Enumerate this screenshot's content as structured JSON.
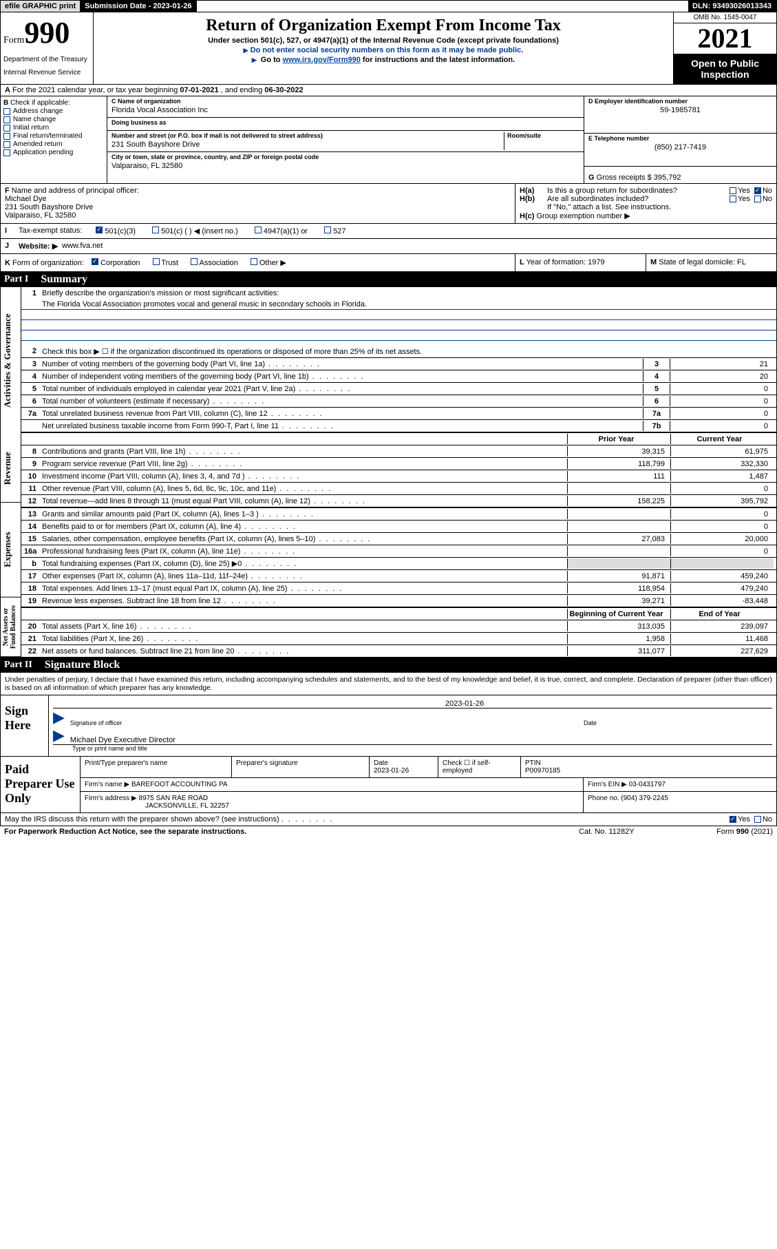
{
  "topbar": {
    "efile": "efile GRAPHIC print",
    "submission_label": "Submission Date - ",
    "submission_date": "2023-01-26",
    "dln_label": "DLN: ",
    "dln": "93493026013343"
  },
  "header": {
    "form_word": "Form",
    "form_number": "990",
    "dept": "Department of the Treasury",
    "irs": "Internal Revenue Service",
    "title": "Return of Organization Exempt From Income Tax",
    "subtitle": "Under section 501(c), 527, or 4947(a)(1) of the Internal Revenue Code (except private foundations)",
    "note1": "Do not enter social security numbers on this form as it may be made public.",
    "note2_pre": "Go to ",
    "note2_link": "www.irs.gov/Form990",
    "note2_post": " for instructions and the latest information.",
    "omb": "OMB No. 1545-0047",
    "year": "2021",
    "inspection": "Open to Public Inspection"
  },
  "row_a": {
    "label": "A",
    "text_pre": "For the 2021 calendar year, or tax year beginning ",
    "date1": "07-01-2021",
    "text_mid": " , and ending ",
    "date2": "06-30-2022"
  },
  "section_b": {
    "label": "B",
    "intro": "Check if applicable:",
    "items": [
      "Address change",
      "Name change",
      "Initial return",
      "Final return/terminated",
      "Amended return",
      "Application pending"
    ]
  },
  "section_c": {
    "name_label": "C Name of organization",
    "name": "Florida Vocal Association Inc",
    "dba_label": "Doing business as",
    "dba": "",
    "street_label": "Number and street (or P.O. box if mail is not delivered to street address)",
    "room_label": "Room/suite",
    "street": "231 South Bayshore Drive",
    "city_label": "City or town, state or province, country, and ZIP or foreign postal code",
    "city": "Valparaiso, FL  32580"
  },
  "section_d": {
    "label": "D Employer identification number",
    "ein": "59-1985781"
  },
  "section_e": {
    "label": "E Telephone number",
    "phone": "(850) 217-7419"
  },
  "section_g": {
    "label": "G",
    "text": "Gross receipts $",
    "val": "395,792"
  },
  "section_f": {
    "label": "F",
    "text": "Name and address of principal officer:",
    "name": "Michael Dye",
    "street": "231 South Bayshore Drive",
    "city": "Valparaiso, FL  32580"
  },
  "section_h": {
    "a_label": "H(a)",
    "a_text": "Is this a group return for subordinates?",
    "b_label": "H(b)",
    "b_text": "Are all subordinates included?",
    "b_note": "If \"No,\" attach a list. See instructions.",
    "c_label": "H(c)",
    "c_text": "Group exemption number ▶",
    "yes": "Yes",
    "no": "No"
  },
  "section_i": {
    "label": "I",
    "text": "Tax-exempt status:",
    "opts": [
      "501(c)(3)",
      "501(c) (  ) ◀ (insert no.)",
      "4947(a)(1) or",
      "527"
    ]
  },
  "section_j": {
    "label": "J",
    "text": "Website: ▶",
    "val": "www.fva.net"
  },
  "section_k": {
    "label": "K",
    "text": "Form of organization:",
    "opts": [
      "Corporation",
      "Trust",
      "Association",
      "Other ▶"
    ]
  },
  "section_l": {
    "label": "L",
    "text": "Year of formation:",
    "val": "1979"
  },
  "section_m": {
    "label": "M",
    "text": "State of legal domicile:",
    "val": "FL"
  },
  "part1": {
    "part": "Part I",
    "title": "Summary",
    "vtabs": [
      "Activities & Governance",
      "Revenue",
      "Expenses",
      "Net Assets or Fund Balances"
    ],
    "line1_num": "1",
    "line1": "Briefly describe the organization's mission or most significant activities:",
    "mission": "The Florida Vocal Association promotes vocal and general music in secondary schools in Florida.",
    "line2_num": "2",
    "line2": "Check this box ▶ ☐ if the organization discontinued its operations or disposed of more than 25% of its net assets.",
    "gov_rows": [
      {
        "n": "3",
        "d": "Number of voting members of the governing body (Part VI, line 1a)",
        "c": "3",
        "v": "21"
      },
      {
        "n": "4",
        "d": "Number of independent voting members of the governing body (Part VI, line 1b)",
        "c": "4",
        "v": "20"
      },
      {
        "n": "5",
        "d": "Total number of individuals employed in calendar year 2021 (Part V, line 2a)",
        "c": "5",
        "v": "0"
      },
      {
        "n": "6",
        "d": "Total number of volunteers (estimate if necessary)",
        "c": "6",
        "v": "0"
      },
      {
        "n": "7a",
        "d": "Total unrelated business revenue from Part VIII, column (C), line 12",
        "c": "7a",
        "v": "0"
      },
      {
        "n": "",
        "d": "Net unrelated business taxable income from Form 990-T, Part I, line 11",
        "c": "7b",
        "v": "0"
      }
    ],
    "col_prior": "Prior Year",
    "col_current": "Current Year",
    "col_boy": "Beginning of Current Year",
    "col_eoy": "End of Year",
    "rev_rows": [
      {
        "n": "8",
        "d": "Contributions and grants (Part VIII, line 1h)",
        "p": "39,315",
        "c": "61,975"
      },
      {
        "n": "9",
        "d": "Program service revenue (Part VIII, line 2g)",
        "p": "118,799",
        "c": "332,330"
      },
      {
        "n": "10",
        "d": "Investment income (Part VIII, column (A), lines 3, 4, and 7d )",
        "p": "111",
        "c": "1,487"
      },
      {
        "n": "11",
        "d": "Other revenue (Part VIII, column (A), lines 5, 6d, 8c, 9c, 10c, and 11e)",
        "p": "",
        "c": "0"
      },
      {
        "n": "12",
        "d": "Total revenue—add lines 8 through 11 (must equal Part VIII, column (A), line 12)",
        "p": "158,225",
        "c": "395,792"
      }
    ],
    "exp_rows": [
      {
        "n": "13",
        "d": "Grants and similar amounts paid (Part IX, column (A), lines 1–3 )",
        "p": "",
        "c": "0"
      },
      {
        "n": "14",
        "d": "Benefits paid to or for members (Part IX, column (A), line 4)",
        "p": "",
        "c": "0"
      },
      {
        "n": "15",
        "d": "Salaries, other compensation, employee benefits (Part IX, column (A), lines 5–10)",
        "p": "27,083",
        "c": "20,000"
      },
      {
        "n": "16a",
        "d": "Professional fundraising fees (Part IX, column (A), line 11e)",
        "p": "",
        "c": "0"
      },
      {
        "n": "b",
        "d": "Total fundraising expenses (Part IX, column (D), line 25) ▶0",
        "p": "gray",
        "c": "gray"
      },
      {
        "n": "17",
        "d": "Other expenses (Part IX, column (A), lines 11a–11d, 11f–24e)",
        "p": "91,871",
        "c": "459,240"
      },
      {
        "n": "18",
        "d": "Total expenses. Add lines 13–17 (must equal Part IX, column (A), line 25)",
        "p": "118,954",
        "c": "479,240"
      },
      {
        "n": "19",
        "d": "Revenue less expenses. Subtract line 18 from line 12",
        "p": "39,271",
        "c": "-83,448"
      }
    ],
    "net_rows": [
      {
        "n": "20",
        "d": "Total assets (Part X, line 16)",
        "p": "313,035",
        "c": "239,097"
      },
      {
        "n": "21",
        "d": "Total liabilities (Part X, line 26)",
        "p": "1,958",
        "c": "11,468"
      },
      {
        "n": "22",
        "d": "Net assets or fund balances. Subtract line 21 from line 20",
        "p": "311,077",
        "c": "227,629"
      }
    ]
  },
  "part2": {
    "part": "Part II",
    "title": "Signature Block",
    "intro": "Under penalties of perjury, I declare that I have examined this return, including accompanying schedules and statements, and to the best of my knowledge and belief, it is true, correct, and complete. Declaration of preparer (other than officer) is based on all information of which preparer has any knowledge.",
    "sign_here": "Sign Here",
    "sig_officer": "Signature of officer",
    "sig_date_label": "Date",
    "sig_date": "2023-01-26",
    "officer_name": "Michael Dye  Executive Director",
    "officer_type": "Type or print name and title",
    "paid": "Paid Preparer Use Only",
    "prep_name_label": "Print/Type preparer's name",
    "prep_sig_label": "Preparer's signature",
    "prep_date_label": "Date",
    "prep_date": "2023-01-26",
    "prep_check": "Check ☐ if self-employed",
    "ptin_label": "PTIN",
    "ptin": "P00970185",
    "firm_name_label": "Firm's name    ▶",
    "firm_name": "BAREFOOT ACCOUNTING PA",
    "firm_ein_label": "Firm's EIN ▶",
    "firm_ein": "03-0431797",
    "firm_addr_label": "Firm's address ▶",
    "firm_addr1": "8975 SAN RAE ROAD",
    "firm_addr2": "JACKSONVILLE, FL  32257",
    "phone_label": "Phone no.",
    "phone": "(904) 379-2245"
  },
  "footer": {
    "discuss": "May the IRS discuss this return with the preparer shown above? (see instructions)",
    "yes": "Yes",
    "no": "No",
    "paperwork": "For Paperwork Reduction Act Notice, see the separate instructions.",
    "cat": "Cat. No. 11282Y",
    "form": "Form 990 (2021)"
  },
  "colors": {
    "darkblue": "#003a8c",
    "link": "#0645ad",
    "gray": "#dddddd"
  }
}
